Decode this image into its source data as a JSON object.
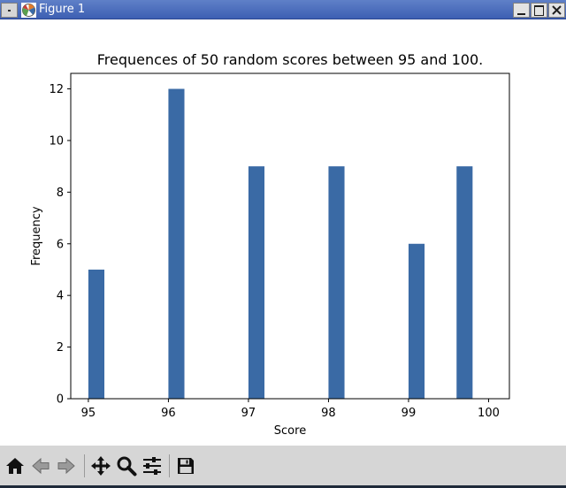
{
  "window": {
    "title": "Figure 1"
  },
  "icons": {
    "app": "matplotlib-logo-icon",
    "minimize": "minimize-icon",
    "maximize": "maximize-icon",
    "close": "close-icon",
    "home": "home-icon",
    "back": "back-arrow-icon",
    "forward": "forward-arrow-icon",
    "pan": "pan-move-icon",
    "zoom": "zoom-magnifier-icon",
    "configure": "configure-subplots-icon",
    "save": "save-floppy-icon"
  },
  "colors": {
    "bar": "#3a6aa5",
    "titlebar": "#4a6cbf",
    "toolbar": "#d6d6d6"
  },
  "chart_data": {
    "type": "bar",
    "title": "Frequences of 50 random scores between 95 and 100.",
    "xlabel": "Score",
    "ylabel": "Frequency",
    "xlim": [
      94.78,
      100.26
    ],
    "ylim": [
      0,
      12.6
    ],
    "xticks": [
      "95",
      "96",
      "97",
      "98",
      "99",
      "100"
    ],
    "yticks": [
      "0",
      "2",
      "4",
      "6",
      "8",
      "10",
      "12"
    ],
    "bin_width": 0.2,
    "bars": [
      {
        "x_start": 95.0,
        "value": 5
      },
      {
        "x_start": 96.0,
        "value": 12
      },
      {
        "x_start": 97.0,
        "value": 9
      },
      {
        "x_start": 98.0,
        "value": 9
      },
      {
        "x_start": 99.0,
        "value": 6
      },
      {
        "x_start": 99.6,
        "value": 9
      }
    ],
    "grid": false,
    "legend": "none"
  }
}
